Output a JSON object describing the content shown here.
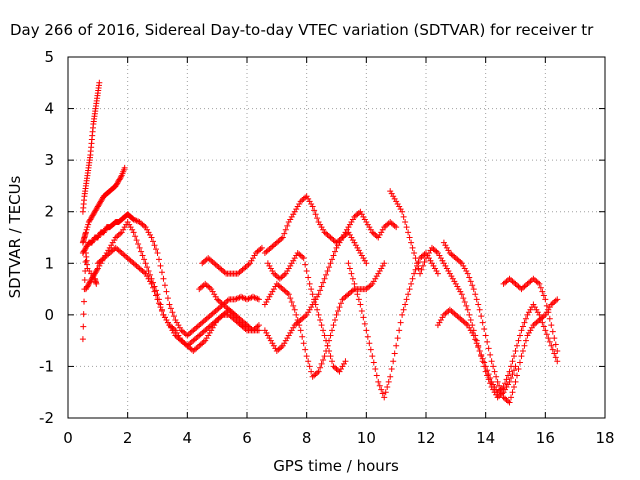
{
  "chart_data": {
    "type": "scatter",
    "title": "Day 266 of 2016, Sidereal Day-to-day VTEC variation (SDTVAR) for receiver tr",
    "xlabel": "GPS time / hours",
    "ylabel": "SDTVAR / TECUs",
    "xlim": [
      0,
      18
    ],
    "ylim": [
      -2,
      5
    ],
    "xticks": [
      "0",
      "2",
      "4",
      "6",
      "8",
      "10",
      "12",
      "14",
      "16",
      "18"
    ],
    "yticks": [
      "-2",
      "-1",
      "0",
      "1",
      "2",
      "3",
      "4",
      "5"
    ],
    "grid": true,
    "marker": "plus",
    "color": "#ff0000",
    "series": [
      {
        "x": [
          0.5,
          0.55,
          0.6,
          0.65,
          0.7,
          0.75,
          0.8,
          0.85,
          0.9,
          0.95,
          1.0,
          1.05
        ],
        "y": [
          2.0,
          2.3,
          2.5,
          2.7,
          2.9,
          3.1,
          3.4,
          3.7,
          3.9,
          4.1,
          4.3,
          4.5
        ]
      },
      {
        "x": [
          0.5,
          0.55,
          0.6,
          0.7,
          0.8,
          0.9,
          1.0,
          1.1,
          1.2,
          1.3,
          1.4,
          1.5,
          1.6,
          1.7,
          1.8,
          1.9
        ],
        "y": [
          1.4,
          1.5,
          1.6,
          1.8,
          1.9,
          2.0,
          2.1,
          2.2,
          2.3,
          2.35,
          2.4,
          2.45,
          2.5,
          2.6,
          2.7,
          2.85
        ]
      },
      {
        "x": [
          0.5,
          0.6,
          0.7,
          0.8,
          0.9,
          1.0,
          1.1,
          1.2,
          1.3,
          1.4,
          1.5,
          1.6,
          1.7,
          1.8,
          1.9,
          2.0,
          2.1,
          2.2,
          2.4,
          2.6,
          2.8,
          3.0,
          3.2,
          3.4,
          3.6,
          3.8,
          4.0,
          4.2,
          4.4,
          4.6,
          4.8,
          5.0,
          5.2,
          5.4,
          5.6,
          5.8,
          6.0,
          6.2,
          6.4
        ],
        "y": [
          1.2,
          1.3,
          1.4,
          1.4,
          1.5,
          1.5,
          1.6,
          1.6,
          1.7,
          1.7,
          1.75,
          1.8,
          1.8,
          1.85,
          1.9,
          1.95,
          1.9,
          1.85,
          1.8,
          1.7,
          1.5,
          1.2,
          0.7,
          0.2,
          -0.1,
          -0.3,
          -0.4,
          -0.3,
          -0.2,
          -0.1,
          0.0,
          0.1,
          0.2,
          0.3,
          0.3,
          0.35,
          0.3,
          0.35,
          0.3
        ]
      },
      {
        "x": [
          0.6,
          0.7,
          0.8,
          0.9,
          1.0,
          1.2,
          1.4,
          1.6,
          1.8,
          2.0,
          2.2,
          2.4,
          2.6,
          2.8,
          3.0,
          3.2,
          3.4,
          3.6,
          3.8,
          4.0,
          4.2,
          4.4,
          4.6,
          4.8,
          5.0,
          5.2,
          5.4,
          5.6,
          5.8,
          6.0,
          6.2,
          6.4
        ],
        "y": [
          0.5,
          0.6,
          0.7,
          0.8,
          0.9,
          1.1,
          1.3,
          1.5,
          1.6,
          1.8,
          1.6,
          1.3,
          1.0,
          0.7,
          0.4,
          0.0,
          -0.2,
          -0.4,
          -0.5,
          -0.6,
          -0.5,
          -0.4,
          -0.3,
          -0.2,
          -0.1,
          0.0,
          0.0,
          -0.1,
          -0.2,
          -0.2,
          -0.3,
          -0.3
        ]
      },
      {
        "x": [
          1.0,
          1.2,
          1.4,
          1.6,
          1.8,
          2.0,
          2.2,
          2.4,
          2.6,
          2.8,
          3.0,
          3.2,
          3.4,
          3.6,
          3.8,
          4.0,
          4.2,
          4.4,
          4.6,
          4.8,
          5.0,
          5.2,
          5.4,
          5.6,
          5.8,
          6.0
        ],
        "y": [
          1.0,
          1.1,
          1.2,
          1.3,
          1.2,
          1.1,
          1.0,
          0.9,
          0.8,
          0.6,
          0.3,
          0.0,
          -0.2,
          -0.3,
          -0.5,
          -0.6,
          -0.7,
          -0.6,
          -0.5,
          -0.3,
          -0.1,
          0.0,
          0.1,
          0.0,
          -0.1,
          -0.2
        ]
      },
      {
        "x": [
          4.5,
          4.7,
          4.9,
          5.1,
          5.3,
          5.5,
          5.7,
          5.9,
          6.1,
          6.3,
          6.5
        ],
        "y": [
          1.0,
          1.1,
          1.0,
          0.9,
          0.8,
          0.8,
          0.8,
          0.9,
          1.0,
          1.2,
          1.3
        ]
      },
      {
        "x": [
          4.4,
          4.6,
          4.8,
          5.0,
          5.2,
          5.4,
          5.6,
          5.8,
          6.0,
          6.2,
          6.4
        ],
        "y": [
          0.5,
          0.6,
          0.5,
          0.3,
          0.2,
          0.1,
          0.0,
          -0.2,
          -0.3,
          -0.3,
          -0.2
        ]
      },
      {
        "x": [
          6.6,
          6.8,
          7.0,
          7.2,
          7.4,
          7.6,
          7.8,
          8.0,
          8.2,
          8.4,
          8.6,
          8.8,
          9.0,
          9.2,
          9.4,
          9.6,
          9.8,
          10.0,
          10.2,
          10.4,
          10.6,
          10.8,
          11.0
        ],
        "y": [
          1.2,
          1.3,
          1.4,
          1.5,
          1.8,
          2.0,
          2.2,
          2.3,
          2.1,
          1.8,
          1.6,
          1.5,
          1.4,
          1.5,
          1.7,
          1.9,
          2.0,
          1.8,
          1.6,
          1.5,
          1.7,
          1.8,
          1.7
        ]
      },
      {
        "x": [
          6.6,
          6.8,
          7.0,
          7.2,
          7.4,
          7.6,
          7.8,
          8.0,
          8.2,
          8.4,
          8.6,
          8.8,
          9.0,
          9.2,
          9.4,
          9.6,
          9.8,
          10.0,
          10.2,
          10.4,
          10.6
        ],
        "y": [
          0.2,
          0.4,
          0.6,
          0.5,
          0.4,
          0.1,
          -0.3,
          -0.8,
          -1.2,
          -1.1,
          -0.8,
          -0.4,
          0.0,
          0.3,
          0.4,
          0.5,
          0.5,
          0.5,
          0.6,
          0.8,
          1.0
        ]
      },
      {
        "x": [
          6.6,
          6.8,
          7.0,
          7.2,
          7.4,
          7.6,
          7.8,
          8.0,
          8.2,
          8.4,
          8.6,
          8.8,
          9.0,
          9.2,
          9.4,
          9.6,
          9.8,
          10.0
        ],
        "y": [
          -0.3,
          -0.5,
          -0.7,
          -0.6,
          -0.4,
          -0.2,
          -0.1,
          0.0,
          0.2,
          0.4,
          0.7,
          1.0,
          1.3,
          1.5,
          1.6,
          1.4,
          1.2,
          1.0
        ]
      },
      {
        "x": [
          6.7,
          6.9,
          7.1,
          7.3,
          7.5,
          7.7,
          7.9,
          8.1,
          8.3,
          8.5,
          8.7,
          8.9,
          9.1,
          9.3
        ],
        "y": [
          1.0,
          0.8,
          0.7,
          0.8,
          1.0,
          1.2,
          1.1,
          0.6,
          0.2,
          -0.2,
          -0.6,
          -1.0,
          -1.1,
          -0.9
        ]
      },
      {
        "x": [
          9.4,
          9.6,
          9.8,
          10.0,
          10.2,
          10.4,
          10.6,
          10.8,
          11.0,
          11.2,
          11.4,
          11.6,
          11.8,
          12.0,
          12.2,
          12.4
        ],
        "y": [
          1.0,
          0.6,
          0.2,
          -0.3,
          -0.8,
          -1.3,
          -1.6,
          -1.2,
          -0.6,
          0.0,
          0.4,
          0.8,
          1.1,
          1.2,
          1.0,
          0.8
        ]
      },
      {
        "x": [
          10.8,
          11.0,
          11.2,
          11.4,
          11.6,
          11.8,
          12.0,
          12.2,
          12.4,
          12.6,
          12.8,
          13.0,
          13.2,
          13.4,
          13.6,
          13.8,
          14.0,
          14.2,
          14.4,
          14.6,
          14.8,
          15.0
        ],
        "y": [
          2.4,
          2.2,
          2.0,
          1.6,
          1.2,
          0.8,
          1.1,
          1.3,
          1.2,
          1.0,
          0.8,
          0.6,
          0.4,
          0.1,
          -0.3,
          -0.7,
          -1.1,
          -1.4,
          -1.6,
          -1.5,
          -1.3,
          -1.0
        ]
      },
      {
        "x": [
          12.6,
          12.8,
          13.0,
          13.2,
          13.4,
          13.6,
          13.8,
          14.0,
          14.2,
          14.4,
          14.6,
          14.8,
          15.0,
          15.2,
          15.4,
          15.6,
          15.8,
          16.0,
          16.2,
          16.4
        ],
        "y": [
          1.4,
          1.2,
          1.1,
          1.0,
          0.8,
          0.5,
          0.1,
          -0.4,
          -0.9,
          -1.3,
          -1.6,
          -1.7,
          -1.3,
          -0.8,
          -0.4,
          -0.2,
          -0.1,
          0.0,
          0.2,
          0.3
        ]
      },
      {
        "x": [
          12.4,
          12.6,
          12.8,
          13.0,
          13.2,
          13.4,
          13.6,
          13.8,
          14.0,
          14.2,
          14.4,
          14.6,
          14.8,
          15.0,
          15.2,
          15.4,
          15.6,
          15.8,
          16.0,
          16.2,
          16.4
        ],
        "y": [
          -0.2,
          0.0,
          0.1,
          0.0,
          -0.1,
          -0.2,
          -0.4,
          -0.7,
          -1.0,
          -1.3,
          -1.5,
          -1.4,
          -1.1,
          -0.7,
          -0.3,
          0.0,
          0.2,
          0.0,
          -0.3,
          -0.6,
          -0.9
        ]
      },
      {
        "x": [
          14.6,
          14.8,
          15.0,
          15.2,
          15.4,
          15.6,
          15.8,
          16.0,
          16.2,
          16.4
        ],
        "y": [
          0.6,
          0.7,
          0.6,
          0.5,
          0.6,
          0.7,
          0.6,
          0.3,
          -0.2,
          -0.7
        ]
      },
      {
        "x": [
          0.5,
          0.55,
          0.6,
          0.65,
          0.9,
          0.95
        ],
        "y": [
          -0.47,
          0.5,
          1.2,
          0.9,
          0.7,
          0.6
        ]
      }
    ]
  }
}
